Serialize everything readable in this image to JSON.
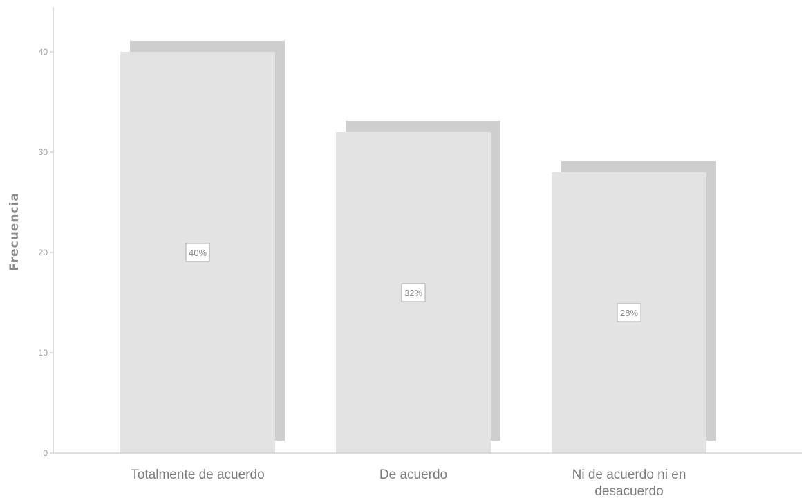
{
  "chart_data": {
    "type": "bar",
    "title": "",
    "xlabel": "",
    "ylabel": "Frecuencia",
    "categories": [
      "Totalmente de acuerdo",
      "De acuerdo",
      "Ni de acuerdo ni en desacuerdo"
    ],
    "category_lines": [
      [
        "Totalmente de acuerdo"
      ],
      [
        "De acuerdo"
      ],
      [
        "Ni de acuerdo ni en",
        "desacuerdo"
      ]
    ],
    "values": [
      40,
      32,
      28
    ],
    "data_labels": [
      "40%",
      "32%",
      "28%"
    ],
    "yticks": [
      0,
      10,
      20,
      30,
      40
    ],
    "ylim": [
      0,
      44
    ],
    "grid": false,
    "legend": "none",
    "colors": {
      "bar_fill": "#e3e3e3",
      "bar_shadow": "#cecece",
      "axis": "#bdbdbd",
      "label_box_border": "#a8a8a8"
    }
  }
}
